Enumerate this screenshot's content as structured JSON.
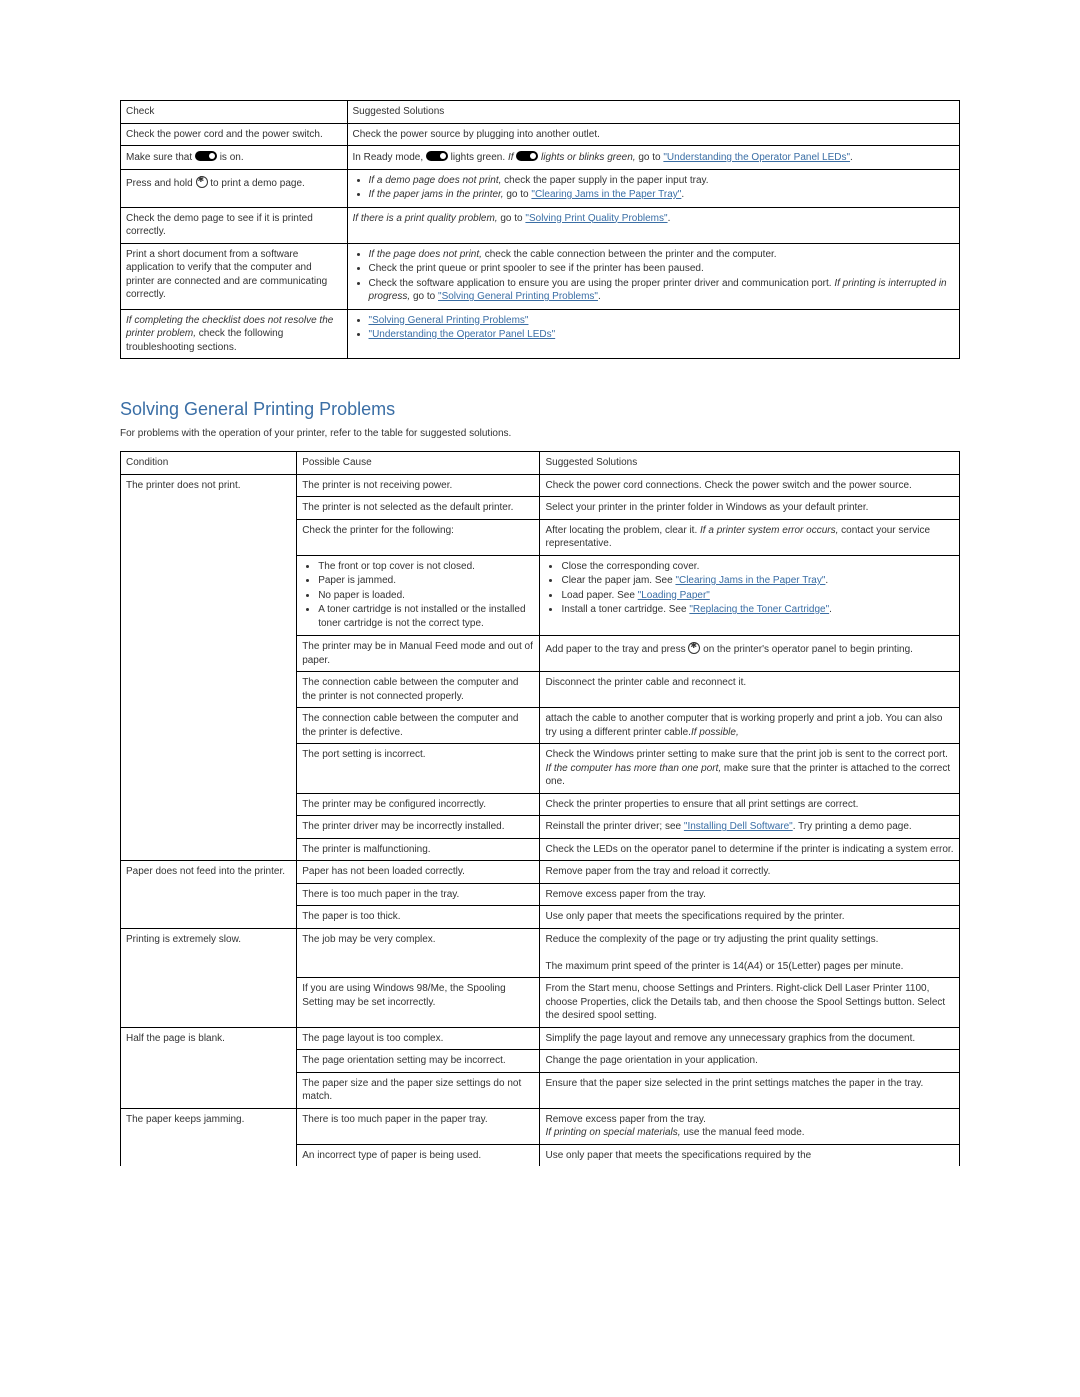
{
  "table1": {
    "headers": {
      "check": "Check",
      "suggested": "Suggested Solutions"
    },
    "rows": [
      {
        "check": "Check the power cord and the power switch.",
        "sugg": {
          "type": "text",
          "text": "Check the power source by plugging into another outlet."
        }
      },
      {
        "check": {
          "pre": "Make sure that ",
          "icon": "led",
          "post": " is on."
        },
        "sugg": {
          "type": "mixed-led",
          "pre": "In Ready mode, ",
          "mid1": " lights green. ",
          "italic": "If ",
          "mid2": " lights or blinks green,",
          "post": " go to ",
          "link": "\"Understanding the Operator Panel LEDs\"",
          "tail": "."
        }
      },
      {
        "check": {
          "pre": "Press and hold ",
          "icon": "btn",
          "post": " to print a demo page."
        },
        "sugg": {
          "type": "list",
          "items": [
            {
              "italicPre": "If a demo page does not print,",
              "text": " check the paper supply in the paper input tray."
            },
            {
              "italicPre": "If the paper jams in the printer,",
              "text": " go to ",
              "link": "\"Clearing Jams in the Paper Tray\"",
              "tail": "."
            }
          ]
        }
      },
      {
        "check": "Check the demo page to see if it is printed correctly.",
        "sugg": {
          "type": "italic-link",
          "italic": "If there is a print quality problem,",
          "text": " go to ",
          "link": "\"Solving Print Quality Problems\"",
          "tail": "."
        }
      },
      {
        "check": "Print a short document from a software application to verify that the computer and printer are connected and are communicating correctly.",
        "sugg": {
          "type": "list",
          "items": [
            {
              "italicPre": "If the page does not print,",
              "text": " check the cable connection between the printer and the computer."
            },
            {
              "text": "Check the print queue or print spooler to see if the printer has been paused."
            },
            {
              "text": "Check the software application to ensure you are using the proper printer driver and communication port. ",
              "italicPost": "If printing is interrupted in progress,",
              "text2": " go to ",
              "link": "\"Solving General Printing Problems\"",
              "tail": "."
            }
          ]
        }
      },
      {
        "check": {
          "italicPre": "If completing the checklist does not resolve the printer problem,",
          "post": " check the following troubleshooting sections."
        },
        "sugg": {
          "type": "linklist",
          "items": [
            "\"Solving General Printing Problems\"",
            "\"Understanding the Operator Panel LEDs\""
          ]
        }
      }
    ]
  },
  "section": {
    "title": "Solving General Printing Problems",
    "intro": "For problems with the operation of your printer, refer to the table for suggested solutions."
  },
  "table2": {
    "headers": {
      "condition": "Condition",
      "cause": "Possible Cause",
      "solution": "Suggested Solutions"
    },
    "groups": [
      {
        "condition": "The printer does not print.",
        "rows": [
          {
            "cause": "The printer is not receiving power.",
            "sol": {
              "text": "Check the power cord connections. Check the power switch and the power source."
            }
          },
          {
            "cause": "The printer is not selected as the default printer.",
            "sol": {
              "text": "Select your printer in the printer folder in Windows as your default printer."
            }
          },
          {
            "cause": "Check the printer for the following:",
            "sol": {
              "text": "After locating the problem, clear it. ",
              "italic": "If a printer system error occurs,",
              "text2": " contact your service representative."
            }
          },
          {
            "causeList": [
              "The front or top cover is not closed.",
              "Paper is jammed.",
              "No paper is loaded.",
              "A toner cartridge is not installed or the installed toner cartridge is not the correct type."
            ],
            "solList": [
              {
                "text": "Close the corresponding cover."
              },
              {
                "text": "Clear the paper jam. See ",
                "link": "\"Clearing Jams in the Paper Tray\"",
                "tail": "."
              },
              {
                "text": "Load paper. See ",
                "link": "\"Loading Paper\""
              },
              {
                "text": "Install a toner cartridge. See ",
                "link": "\"Replacing the Toner Cartridge\"",
                "tail": "."
              }
            ]
          },
          {
            "cause": "The printer may be in Manual Feed mode and out of paper.",
            "sol": {
              "pre": "Add paper to the tray and press ",
              "icon": "btn",
              "post": " on the printer's operator panel to begin printing."
            }
          },
          {
            "cause": "The connection cable between the computer and the printer is not connected properly.",
            "sol": {
              "text": "Disconnect the printer cable and reconnect it."
            }
          },
          {
            "cause": "The connection cable between the computer and the printer is defective.",
            "sol": {
              "italic": "If possible,",
              "text": " attach the cable to another computer that is working properly and print a job. You can also try using a different printer cable."
            }
          },
          {
            "cause": "The port setting is incorrect.",
            "sol": {
              "text": "Check the Windows printer setting to make sure that the print job is sent to the correct port. ",
              "italic": "If the computer has more than one port,",
              "text2": " make sure that the printer is attached to the correct one."
            }
          },
          {
            "cause": "The printer may be configured incorrectly.",
            "sol": {
              "text": "Check the printer properties to ensure that all print settings are correct."
            }
          },
          {
            "cause": "The printer driver may be incorrectly installed.",
            "sol": {
              "text": "Reinstall the printer driver; see ",
              "link": "\"Installing Dell Software\"",
              "tail": ". Try printing a demo page."
            }
          },
          {
            "cause": "The printer is malfunctioning.",
            "sol": {
              "text": "Check the LEDs on the operator panel to determine if the printer is indicating a system error."
            }
          }
        ]
      },
      {
        "condition": "Paper does not feed into the printer.",
        "rows": [
          {
            "cause": "Paper has not been loaded correctly.",
            "sol": {
              "text": "Remove paper from the tray and reload it correctly."
            }
          },
          {
            "cause": "There is too much paper in the tray.",
            "sol": {
              "text": "Remove excess paper from the tray."
            }
          },
          {
            "cause": "The paper is too thick.",
            "sol": {
              "text": "Use only paper that meets the specifications required by the printer."
            }
          }
        ]
      },
      {
        "condition": "Printing is extremely slow.",
        "rows": [
          {
            "cause": "The job may be very complex.",
            "sol": {
              "para1": "Reduce the complexity of the page or try adjusting the print quality settings.",
              "para2": "The maximum print speed of the printer is 14(A4) or 15(Letter) pages per minute."
            }
          },
          {
            "cause": "If you are using Windows 98/Me, the Spooling Setting may be set incorrectly.",
            "sol": {
              "text": "From the Start menu, choose Settings and Printers. Right-click Dell Laser Printer 1100, choose Properties, click the Details tab, and then choose the Spool Settings button. Select the desired spool setting."
            }
          }
        ]
      },
      {
        "condition": "Half the page is blank.",
        "rows": [
          {
            "cause": "The page layout is too complex.",
            "sol": {
              "text": "Simplify the page layout and remove any unnecessary graphics from the document."
            }
          },
          {
            "cause": "The page orientation setting may be incorrect.",
            "sol": {
              "text": "Change the page orientation in your application."
            }
          },
          {
            "cause": "The paper size and the paper size settings do not match.",
            "sol": {
              "text": "Ensure that the paper size selected in the print settings matches the paper in the tray."
            }
          }
        ]
      },
      {
        "condition": "The paper keeps jamming.",
        "rows": [
          {
            "cause": "There is too much paper in the paper tray.",
            "sol": {
              "text": "Remove excess paper from the tray.",
              "br": true,
              "italic": "If printing on special materials,",
              "text2": " use the manual feed mode."
            }
          },
          {
            "cause": "An incorrect type of paper is being used.",
            "sol": {
              "text": "Use only paper that meets the specifications required by the"
            },
            "noborder": true
          }
        ]
      }
    ]
  }
}
